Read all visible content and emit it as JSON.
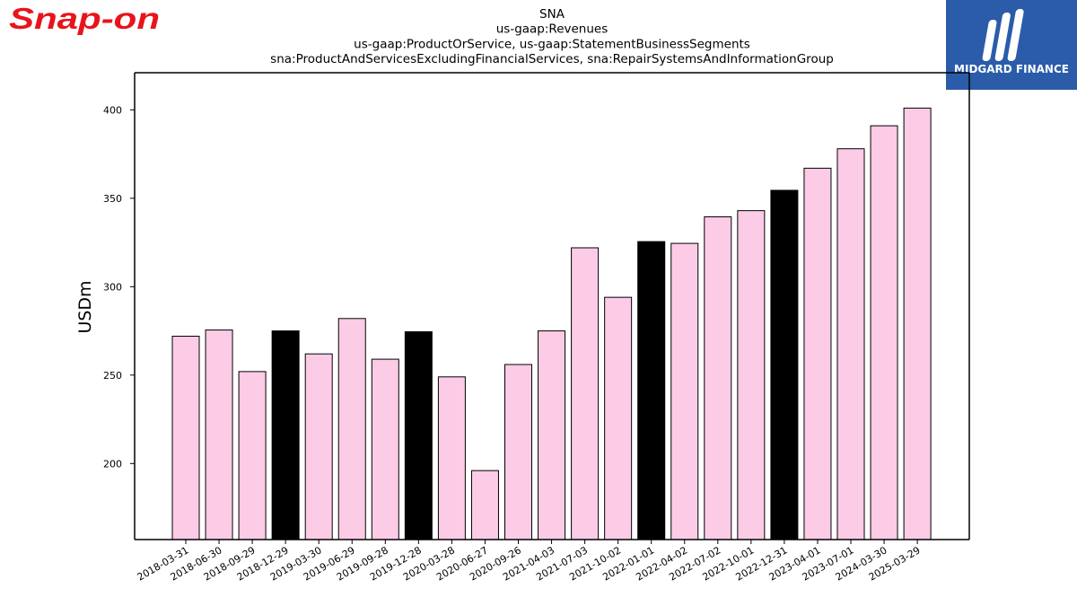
{
  "logos": {
    "left_brand": "Snap-on",
    "right_brand": "MIDGARD FINANCE"
  },
  "colors": {
    "bar_default": "#fccbe6",
    "bar_highlight": "#000000",
    "bar_edge": "#000000",
    "snapon_red": "#e8141c",
    "midgard_blue": "#2a5caa"
  },
  "chart_data": {
    "type": "bar",
    "title": [
      "SNA",
      "us-gaap:Revenues",
      "us-gaap:ProductOrService, us-gaap:StatementBusinessSegments",
      "sna:ProductAndServicesExcludingFinancialServices, sna:RepairSystemsAndInformationGroup"
    ],
    "xlabel": "",
    "ylabel": "USDm",
    "ylim": [
      157,
      421
    ],
    "yticks": [
      200,
      250,
      300,
      350,
      400
    ],
    "grid": false,
    "categories": [
      "2018-03-31",
      "2018-06-30",
      "2018-09-29",
      "2018-12-29",
      "2019-03-30",
      "2019-06-29",
      "2019-09-28",
      "2019-12-28",
      "2020-03-28",
      "2020-06-27",
      "2020-09-26",
      "2021-04-03",
      "2021-07-03",
      "2021-10-02",
      "2022-01-01",
      "2022-04-02",
      "2022-07-02",
      "2022-10-01",
      "2022-12-31",
      "2023-04-01",
      "2023-07-01",
      "2024-03-30",
      "2025-03-29"
    ],
    "values": [
      272,
      275.5,
      252,
      275,
      262,
      282,
      259,
      274.5,
      249,
      196,
      256,
      275,
      322,
      294,
      325.5,
      324.5,
      339.5,
      343,
      354.5,
      367,
      378,
      391,
      401
    ],
    "highlighted": [
      false,
      false,
      false,
      true,
      false,
      false,
      false,
      true,
      false,
      false,
      false,
      false,
      false,
      false,
      true,
      false,
      false,
      false,
      true,
      false,
      false,
      false,
      false
    ]
  }
}
